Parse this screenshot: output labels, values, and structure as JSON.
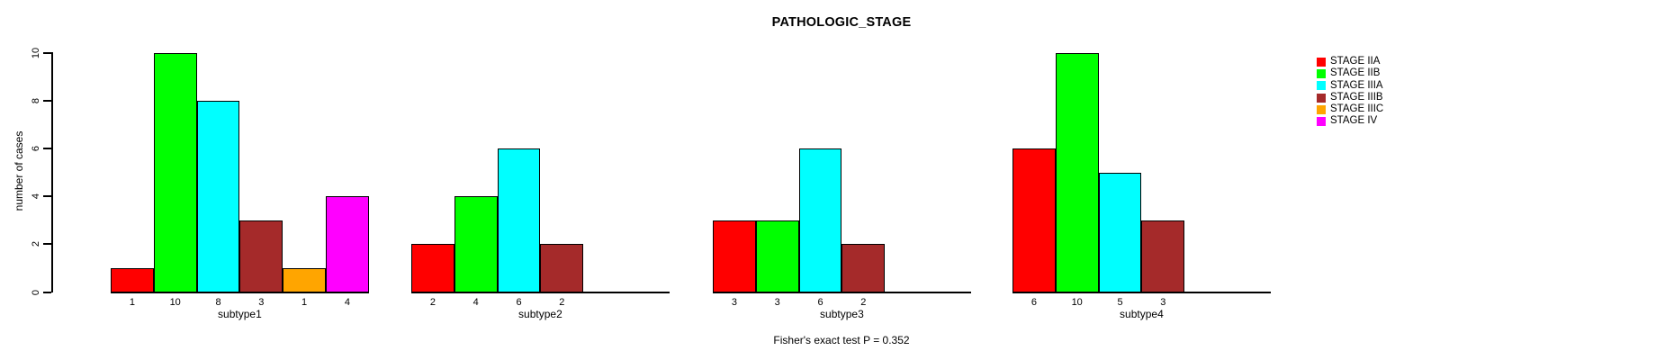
{
  "chart_data": {
    "type": "bar",
    "title": "PATHOLOGIC_STAGE",
    "ylabel": "number of cases",
    "xlabel": "",
    "ylim": [
      0,
      10
    ],
    "yticks": [
      0,
      2,
      4,
      6,
      8,
      10
    ],
    "grid": false,
    "legend_position": "outside-top-right",
    "annotation": "Fisher's exact test P = 0.352",
    "categories": [
      "subtype1",
      "subtype2",
      "subtype3",
      "subtype4"
    ],
    "series": [
      {
        "name": "STAGE IIA",
        "color": "#FF0000",
        "values": [
          1,
          2,
          3,
          6
        ]
      },
      {
        "name": "STAGE IIB",
        "color": "#00FF00",
        "values": [
          10,
          4,
          3,
          10
        ]
      },
      {
        "name": "STAGE IIIA",
        "color": "#00FFFF",
        "values": [
          8,
          6,
          6,
          5
        ]
      },
      {
        "name": "STAGE IIIB",
        "color": "#A52A2A",
        "values": [
          3,
          2,
          2,
          3
        ]
      },
      {
        "name": "STAGE IIIC",
        "color": "#FFA500",
        "values": [
          1,
          0,
          0,
          0
        ]
      },
      {
        "name": "STAGE IV",
        "color": "#FF00FF",
        "values": [
          4,
          0,
          0,
          0
        ]
      }
    ],
    "bar_value_labels": [
      [
        "1",
        "10",
        "8",
        "3",
        "1",
        "4"
      ],
      [
        "2",
        "4",
        "6",
        "2",
        "",
        ""
      ],
      [
        "3",
        "3",
        "6",
        "2",
        "",
        ""
      ],
      [
        "6",
        "10",
        "5",
        "3",
        "",
        ""
      ]
    ],
    "colors": {
      "background": "#FFFFFF",
      "axis": "#000000",
      "text": "#000000"
    }
  }
}
